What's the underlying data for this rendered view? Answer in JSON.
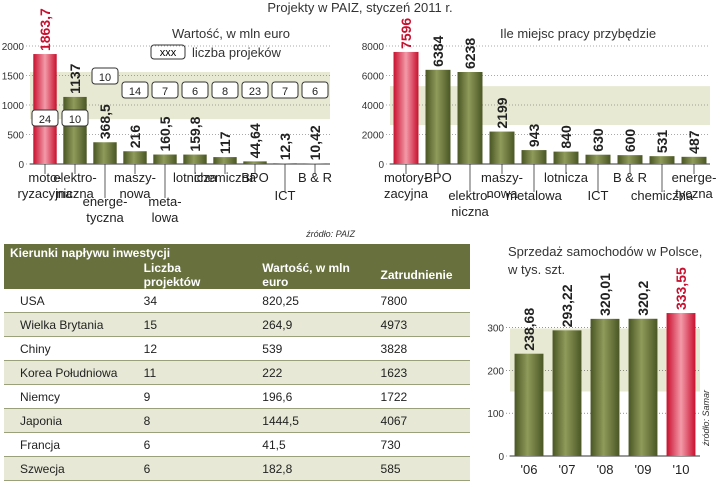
{
  "header": {
    "title": "Projekty w PAIZ, styczeń 2011 r."
  },
  "chart_data": [
    {
      "type": "bar",
      "title": "Wartość, w mln euro",
      "legend_box_label": "xxx",
      "legend_label": "liczba projeków",
      "ylim": [
        0,
        2000
      ],
      "yticks": [
        0,
        500,
        1000,
        1500,
        2000
      ],
      "categories": [
        [
          "moto-",
          "ryzacyjna"
        ],
        [
          "elektro-",
          "niczna"
        ],
        [
          "energe-",
          "tyczna"
        ],
        [
          "maszy-",
          "nowa"
        ],
        [
          "meta-",
          "lowa"
        ],
        [
          "lotnicza"
        ],
        [
          "chemiczna"
        ],
        [
          "BPO"
        ],
        [
          "ICT"
        ],
        [
          "B & R"
        ]
      ],
      "values": [
        1863.7,
        1137,
        368.5,
        216,
        160.5,
        159.8,
        117,
        44.64,
        12.3,
        10.42
      ],
      "value_labels": [
        "1863,7",
        "1137",
        "368,5",
        "216",
        "160,5",
        "159,8",
        "117",
        "44,64",
        "12,3",
        "10,42"
      ],
      "project_counts": [
        "24",
        "10",
        "10",
        "14",
        "7",
        "6",
        "8",
        "23",
        "7",
        "6"
      ],
      "highlight_index": 0,
      "source": "źródło: PAIZ"
    },
    {
      "type": "bar",
      "title": "Ile miejsc pracy przybędzie",
      "ylim": [
        0,
        8000
      ],
      "yticks": [
        0,
        2000,
        4000,
        6000,
        8000
      ],
      "categories": [
        [
          "motory-",
          "zacyjna"
        ],
        [
          "BPO"
        ],
        [
          "elektro-",
          "niczna"
        ],
        [
          "maszy-",
          "nowa"
        ],
        [
          "metalowa"
        ],
        [
          "lotnicza"
        ],
        [
          "ICT"
        ],
        [
          "B & R"
        ],
        [
          "chemiczna"
        ],
        [
          "energe-",
          "tyczna"
        ]
      ],
      "values": [
        7596,
        6384,
        6238,
        2199,
        943,
        840,
        630,
        600,
        531,
        487
      ],
      "value_labels": [
        "7596",
        "6384",
        "6238",
        "2199",
        "943",
        "840",
        "630",
        "600",
        "531",
        "487"
      ],
      "highlight_index": 0
    },
    {
      "type": "table",
      "title": "Kierunki napływu inwestycji",
      "columns": [
        "",
        "Liczba projektów",
        "Wartość, w mln euro",
        "Zatrudnienie"
      ],
      "rows": [
        [
          "USA",
          "34",
          "820,25",
          "7800"
        ],
        [
          "Wielka Brytania",
          "15",
          "264,9",
          "4973"
        ],
        [
          "Chiny",
          "12",
          "539",
          "3828"
        ],
        [
          "Korea Południowa",
          "11",
          "222",
          "1623"
        ],
        [
          "Niemcy",
          "9",
          "196,6",
          "1722"
        ],
        [
          "Japonia",
          "8",
          "1444,5",
          "4067"
        ],
        [
          "Francja",
          "6",
          "41,5",
          "730"
        ],
        [
          "Szwecja",
          "6",
          "182,8",
          "585"
        ]
      ]
    },
    {
      "type": "bar",
      "title": "Sprzedaż samochodów w Polsce, w tys. szt.",
      "ylim": [
        0,
        350
      ],
      "yticks": [
        0,
        100,
        200,
        300
      ],
      "categories": [
        "'06",
        "'07",
        "'08",
        "'09",
        "'10"
      ],
      "values": [
        238.68,
        293.22,
        320.01,
        320.2,
        333.55
      ],
      "value_labels": [
        "238,68",
        "293,22",
        "320,01",
        "320,2",
        "333,55"
      ],
      "highlight_index": 4,
      "source": "źródło: Samar"
    }
  ],
  "colors": {
    "green_bar": "#5b6a2e",
    "green_bar_light": "#9aa566",
    "red_bar": "#c8102e",
    "red_bar_light": "#f0a0ae",
    "red_label": "#c8102e",
    "panel_band": "#e8e9d3",
    "table_header": "#68703e",
    "table_alt_row": "#e7e8d6"
  }
}
